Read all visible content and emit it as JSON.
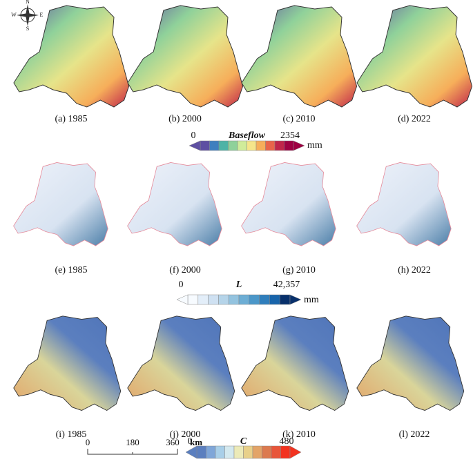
{
  "compass": {
    "n": "N",
    "s": "S",
    "w": "W",
    "e": "E"
  },
  "rows": [
    {
      "panels": [
        "(a) 1985",
        "(b) 2000",
        "(c) 2010",
        "(d) 2022"
      ],
      "legend": {
        "title": "Baseflow",
        "min": "0",
        "max": "2354",
        "unit": "mm",
        "colors": [
          "#5e4fa2",
          "#3f7fbf",
          "#4eb3a6",
          "#8fd19a",
          "#d0ec9a",
          "#f5e58a",
          "#f6ae5a",
          "#e8644a",
          "#c0254a",
          "#9e0142"
        ]
      }
    },
    {
      "panels": [
        "(e) 1985",
        "(f) 2000",
        "(g) 2010",
        "(h) 2022"
      ],
      "legend": {
        "title": "L",
        "min": "0",
        "max": "42,357",
        "unit": "mm",
        "colors": [
          "#f7fbff",
          "#e3eef9",
          "#cfe1f2",
          "#b5d4e9",
          "#93c3df",
          "#6daed5",
          "#4b97c9",
          "#2f7ebc",
          "#1864aa",
          "#08306b"
        ]
      }
    },
    {
      "panels": [
        "(i)  1985",
        "(j) 2000",
        "(k) 2010",
        "(l)   2022"
      ],
      "legend": {
        "title": "C",
        "min": "0",
        "max": "480",
        "colors": [
          "#5b7fbf",
          "#7fa6d8",
          "#a9cfe8",
          "#d4e9ef",
          "#eceab8",
          "#e8d08a",
          "#e3a468",
          "#dc7a4f",
          "#e8553a",
          "#f2321f"
        ]
      }
    }
  ],
  "scale_bar": {
    "ticks": [
      "0",
      "180",
      "360"
    ],
    "unit": "km"
  }
}
